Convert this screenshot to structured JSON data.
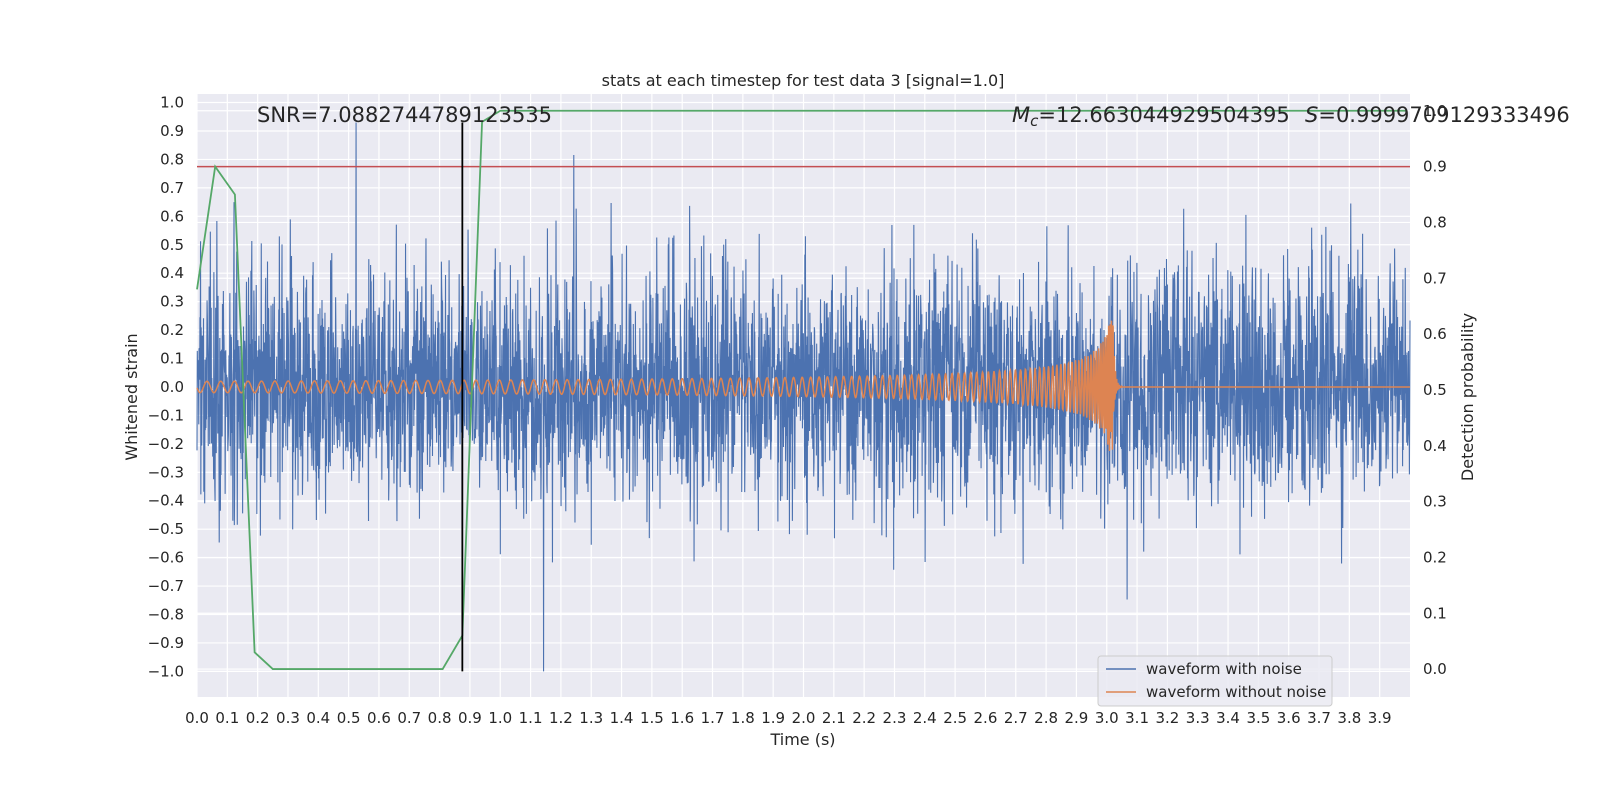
{
  "chart_data": {
    "type": "line",
    "title": "stats at each timestep for test data 3 [signal=1.0]",
    "xlabel": "Time (s)",
    "ylabel": "Whitened strain",
    "y2label": "Detection probability",
    "xlim": [
      0.0,
      4.0
    ],
    "ylim": [
      -1.09,
      1.03
    ],
    "y2lim": [
      -0.05,
      1.03
    ],
    "xticks": [
      "0.0",
      "0.1",
      "0.2",
      "0.3",
      "0.4",
      "0.5",
      "0.6",
      "0.7",
      "0.8",
      "0.9",
      "1.0",
      "1.1",
      "1.2",
      "1.3",
      "1.4",
      "1.5",
      "1.6",
      "1.7",
      "1.8",
      "1.9",
      "2.0",
      "2.1",
      "2.2",
      "2.3",
      "2.4",
      "2.5",
      "2.6",
      "2.7",
      "2.8",
      "2.9",
      "3.0",
      "3.1",
      "3.2",
      "3.3",
      "3.4",
      "3.5",
      "3.6",
      "3.7",
      "3.8",
      "3.9"
    ],
    "yticks": [
      "1.0",
      "0.9",
      "0.8",
      "0.7",
      "0.6",
      "0.5",
      "0.4",
      "0.3",
      "0.2",
      "0.1",
      "0.0",
      "−0.1",
      "−0.2",
      "−0.3",
      "−0.4",
      "−0.5",
      "−0.6",
      "−0.7",
      "−0.8",
      "−0.9",
      "−1.0"
    ],
    "y2ticks": [
      "1.0",
      "0.9",
      "0.8",
      "0.7",
      "0.6",
      "0.5",
      "0.4",
      "0.3",
      "0.2",
      "0.1",
      "0.0"
    ],
    "annotations": {
      "snr": "SNR=7.0882744789123535",
      "mc_symbol": "M",
      "mc_sub": "c",
      "mc_value": "=12.663044929504395",
      "s_symbol": "S",
      "s_value": "=0.9999709129333496"
    },
    "threshold": 0.9,
    "event_time": 0.875,
    "series": [
      {
        "name": "waveform with noise",
        "color": "#4c72b0",
        "kind": "noise",
        "amplitude": 0.38,
        "peaks": [
          0.93,
          -1.0
        ]
      },
      {
        "name": "waveform without noise",
        "color": "#dd8452",
        "kind": "chirp",
        "merger_time": 3.02,
        "amplitude_start": 0.02,
        "amplitude_peak": 0.25
      },
      {
        "name": "detection probability",
        "color": "#55a868",
        "axis": "right",
        "x": [
          0.0,
          0.06,
          0.125,
          0.19,
          0.25,
          0.81,
          0.875,
          0.94,
          1.0,
          3.99
        ],
        "y": [
          0.68,
          0.9,
          0.85,
          0.03,
          0.0,
          0.0,
          0.06,
          0.98,
          1.0,
          1.0
        ]
      }
    ],
    "legend": {
      "placement": "lower-right",
      "entries": [
        "waveform with noise",
        "waveform without noise"
      ]
    },
    "grid": true,
    "colors": {
      "background": "#eaeaf2",
      "grid": "#ffffff",
      "threshold_line": "#c44e52",
      "event_line": "#000000"
    }
  }
}
